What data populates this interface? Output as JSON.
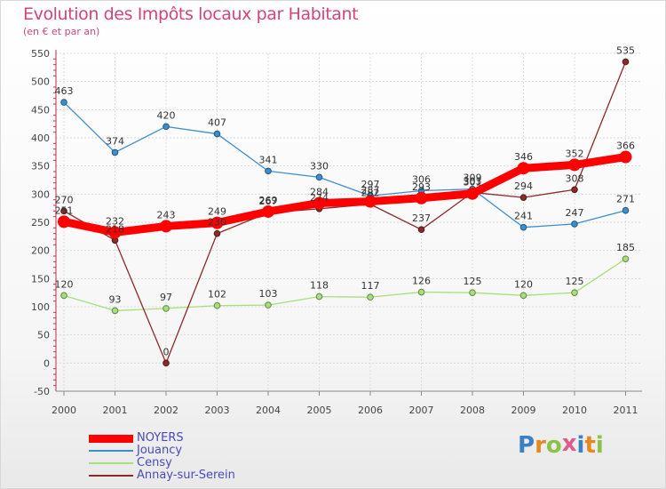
{
  "title": "Evolution des Impôts locaux par Habitant",
  "subtitle": "(en € et par an)",
  "logo": {
    "text": "Proxiti",
    "letters": [
      {
        "ch": "P",
        "color": "#3a82c4"
      },
      {
        "ch": "r",
        "color": "#e5881f"
      },
      {
        "ch": "o",
        "color": "#8bc34a"
      },
      {
        "ch": "x",
        "color": "#e05a8f"
      },
      {
        "ch": "i",
        "color": "#3a82c4"
      },
      {
        "ch": "t",
        "color": "#e5881f"
      },
      {
        "ch": "i",
        "color": "#8bc34a"
      }
    ]
  },
  "chart_data": {
    "type": "line",
    "title": "Evolution des Impôts locaux par Habitant",
    "subtitle": "(en € et par an)",
    "xlabel": "",
    "ylabel": "",
    "ylim": [
      -50,
      550
    ],
    "yticks": [
      -50,
      0,
      50,
      100,
      150,
      200,
      250,
      300,
      350,
      400,
      450,
      500,
      550
    ],
    "grid": true,
    "legend_position": "bottom-left",
    "categories": [
      "2000",
      "2001",
      "2002",
      "2003",
      "2004",
      "2005",
      "2006",
      "2007",
      "2008",
      "2009",
      "2010",
      "2011"
    ],
    "series": [
      {
        "name": "Jouancy",
        "color": "#3b8fd0",
        "values": [
          463,
          374,
          420,
          407,
          341,
          330,
          297,
          306,
          309,
          241,
          247,
          271
        ],
        "labels": [
          "463",
          "374",
          "420",
          "407",
          "341",
          "330",
          "297",
          "306",
          "309",
          "241",
          "247",
          "271"
        ]
      },
      {
        "name": "Censy",
        "color": "#a6e07a",
        "values": [
          120,
          93,
          97,
          102,
          103,
          118,
          117,
          126,
          125,
          120,
          125,
          185
        ],
        "labels": [
          "120",
          "93",
          "97",
          "102",
          "103",
          "118",
          "117",
          "126",
          "125",
          "120",
          "125",
          "185"
        ]
      },
      {
        "name": "Annay-sur-Serein",
        "color": "#8b2a2a",
        "values": [
          270,
          218,
          0,
          230,
          267,
          274,
          282,
          237,
          303,
          294,
          308,
          535
        ],
        "labels": [
          "270",
          "218",
          "0",
          "230",
          "267",
          "274",
          "282",
          "237",
          "303",
          "294",
          "308",
          "535"
        ]
      },
      {
        "name": "NOYERS",
        "color": "#ff0000",
        "values": [
          251,
          232,
          243,
          249,
          269,
          284,
          287,
          293,
          301,
          346,
          352,
          366
        ],
        "labels": [
          "251",
          "232",
          "243",
          "249",
          "269",
          "284",
          "287",
          "293",
          "301",
          "346",
          "352",
          "366"
        ]
      }
    ]
  },
  "legend": [
    {
      "label": "NOYERS",
      "color": "#ff0000",
      "thick": true
    },
    {
      "label": "Jouancy",
      "color": "#3b8fd0",
      "thick": false
    },
    {
      "label": "Censy",
      "color": "#a6e07a",
      "thick": false
    },
    {
      "label": "Annay-sur-Serein",
      "color": "#8b2a2a",
      "thick": false
    }
  ]
}
